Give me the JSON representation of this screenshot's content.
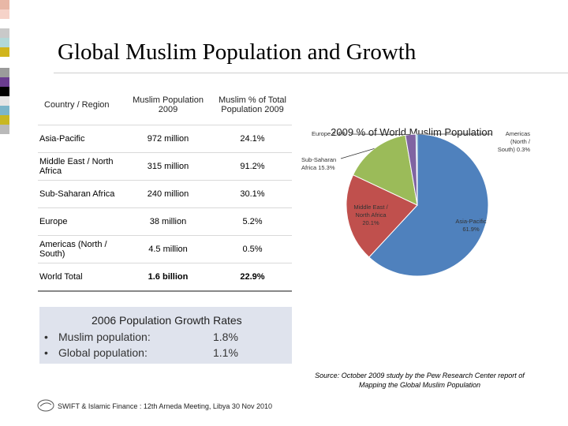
{
  "title": "Global Muslim Population and Growth",
  "table": {
    "headers": [
      "Country / Region",
      "Muslim Population 2009",
      "Muslim % of Total Population 2009"
    ],
    "rows": [
      {
        "region": "Asia-Pacific",
        "population": "972 million",
        "percent": "24.1%"
      },
      {
        "region": "Middle East / North Africa",
        "population": "315 million",
        "percent": "91.2%"
      },
      {
        "region": "Sub-Saharan Africa",
        "population": "240 million",
        "percent": "30.1%"
      },
      {
        "region": "Europe",
        "population": "38 million",
        "percent": "5.2%"
      },
      {
        "region": "Americas (North / South)",
        "population": "4.5 million",
        "percent": "0.5%"
      }
    ],
    "total": {
      "region": "World Total",
      "population": "1.6 billion",
      "percent": "22.9%"
    }
  },
  "growth": {
    "title": "2006 Population Growth Rates",
    "items": [
      {
        "label": "Muslim population:",
        "value": "1.8%"
      },
      {
        "label": "Global population:",
        "value": "1.1%"
      }
    ]
  },
  "chart_data": {
    "type": "pie",
    "title": "2009 % of World Muslim Population",
    "slices": [
      {
        "label": "Asia-Pacific",
        "value": 61.9,
        "display": "Asia-Pacific 61.9%",
        "color": "#4f81bd"
      },
      {
        "label": "Middle East / North Africa",
        "value": 20.1,
        "display": "Middle East / North Africa 20.1%",
        "color": "#c0504d"
      },
      {
        "label": "Sub-Saharan Africa",
        "value": 15.3,
        "display": "Sub-Saharan Africa 15.3%",
        "color": "#9bbb59"
      },
      {
        "label": "Europe",
        "value": 2.4,
        "display": "Europe 2.4%",
        "color": "#8064a2"
      },
      {
        "label": "Americas (North / South)",
        "value": 0.3,
        "display": "Americas (North / South) 0.3%",
        "color": "#4bacc6"
      }
    ]
  },
  "source": {
    "line1": "Source: October 2009 study by the Pew Research Center report of",
    "line2": "Mapping the Global Muslim Population"
  },
  "footer": "SWIFT & Islamic Finance : 12th Arneda Meeting, Libya 30 Nov 2010",
  "colors": {
    "growth_bg": "#dfe3ed",
    "strip": [
      "#e8b7a6",
      "#f6d3c9",
      "#c9c9c9",
      "#b2d8d8",
      "#d1b51c",
      "#4d8bbf",
      "#9b9b9b",
      "#6a3c8f",
      "#c0c0c0",
      "#000000",
      "#e5e5e5",
      "#7bb5c9",
      "#c8b722",
      "#b9b9b9"
    ]
  }
}
